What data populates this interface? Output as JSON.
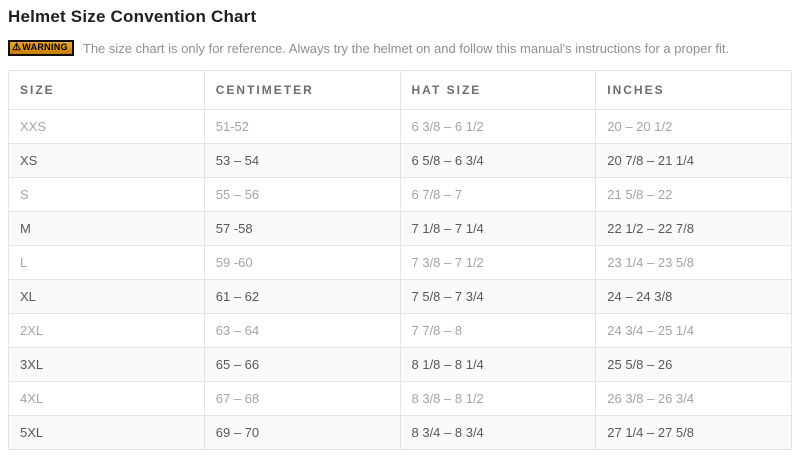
{
  "page": {
    "title": "Helmet Size Convention Chart",
    "warning": {
      "badge_label": "WARNING",
      "text": "The size chart is only for reference. Always try the helmet on and follow this manual's instructions for a proper fit."
    }
  },
  "table": {
    "columns": [
      "SIZE",
      "CENTIMETER",
      "HAT SIZE",
      "INCHES"
    ],
    "column_keys": [
      "size",
      "centimeter",
      "hat-size",
      "inches"
    ],
    "rows": [
      [
        "XXS",
        "51-52",
        "6 3/8 – 6 1/2",
        "20 – 20 1/2"
      ],
      [
        "XS",
        "53 – 54",
        "6 5/8 – 6 3/4",
        "20 7/8 – 21 1/4"
      ],
      [
        "S",
        "55 – 56",
        "6 7/8 – 7",
        "21 5/8 – 22"
      ],
      [
        "M",
        "57 -58",
        "7 1/8 – 7 1/4",
        "22 1/2 – 22 7/8"
      ],
      [
        "L",
        "59 -60",
        "7 3/8 – 7 1/2",
        "23 1/4 – 23 5/8"
      ],
      [
        "XL",
        "61 – 62",
        "7 5/8 – 7 3/4",
        "24 – 24 3/8"
      ],
      [
        "2XL",
        "63 – 64",
        "7 7/8 – 8",
        "24 3/4 – 25 1/4"
      ],
      [
        "3XL",
        "65 – 66",
        "8 1/8 – 8 1/4",
        "25 5/8 – 26"
      ],
      [
        "4XL",
        "67 – 68",
        "8 3/8 – 8 1/2",
        "26 3/8 – 26 3/4"
      ],
      [
        "5XL",
        "69 – 70",
        "8 3/4 – 8 3/4",
        "27 1/4 – 27 5/8"
      ]
    ]
  },
  "colors": {
    "warning_badge_top": "#f0a537",
    "warning_badge_bottom": "#c67e05",
    "warning_badge_border": "#0d0d0d",
    "row_text_light": "#a4a4a4",
    "row_text_dark": "#58585a",
    "stripe_bg": "#fafafa",
    "table_border": "#e3e3e3"
  }
}
